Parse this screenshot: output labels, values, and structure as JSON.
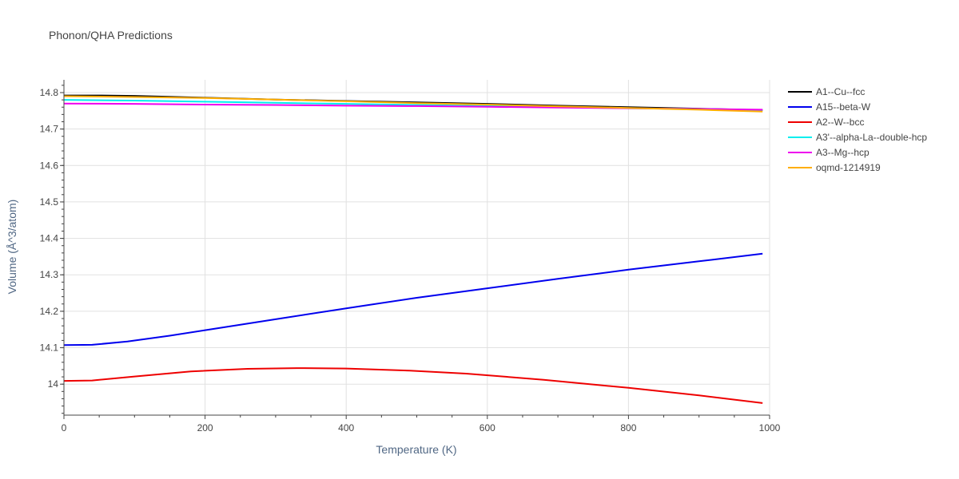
{
  "chart_data": {
    "type": "line",
    "title": "Phonon/QHA Predictions",
    "xlabel": "Temperature (K)",
    "ylabel": "Volume (Å^3/atom)",
    "xlim": [
      0,
      1000
    ],
    "ylim": [
      13.915,
      14.835
    ],
    "x_ticks": [
      0,
      200,
      400,
      600,
      800,
      1000
    ],
    "y_ticks": [
      14,
      14.1,
      14.2,
      14.3,
      14.4,
      14.5,
      14.6,
      14.7,
      14.8
    ],
    "x_tick_labels": [
      "0",
      "200",
      "400",
      "600",
      "800",
      "1000"
    ],
    "y_tick_labels": [
      "14",
      "14.1",
      "14.2",
      "14.3",
      "14.4",
      "14.5",
      "14.6",
      "14.7",
      "14.8"
    ],
    "grid": true,
    "legend_position": "right",
    "series": [
      {
        "name": "A1--Cu--fcc",
        "color": "#000000",
        "x": [
          0,
          50,
          100,
          200,
          300,
          400,
          500,
          600,
          700,
          800,
          990
        ],
        "y": [
          14.792,
          14.792,
          14.791,
          14.786,
          14.781,
          14.777,
          14.773,
          14.769,
          14.764,
          14.76,
          14.752
        ]
      },
      {
        "name": "A15--beta-W",
        "color": "#0000ee",
        "x": [
          0,
          40,
          90,
          150,
          200,
          300,
          400,
          500,
          600,
          700,
          800,
          900,
          990
        ],
        "y": [
          14.107,
          14.108,
          14.117,
          14.133,
          14.148,
          14.178,
          14.208,
          14.237,
          14.263,
          14.289,
          14.314,
          14.337,
          14.358
        ]
      },
      {
        "name": "A2--W--bcc",
        "color": "#ee0000",
        "x": [
          0,
          40,
          100,
          180,
          260,
          330,
          400,
          490,
          570,
          680,
          800,
          900,
          990
        ],
        "y": [
          14.009,
          14.01,
          14.021,
          14.035,
          14.042,
          14.044,
          14.043,
          14.037,
          14.029,
          14.012,
          13.99,
          13.969,
          13.948
        ]
      },
      {
        "name": "A3'--alpha-La--double-hcp",
        "color": "#00eeee",
        "x": [
          0,
          100,
          200,
          300,
          400,
          500,
          600,
          700,
          800,
          900,
          990
        ],
        "y": [
          14.78,
          14.778,
          14.775,
          14.772,
          14.769,
          14.766,
          14.763,
          14.76,
          14.757,
          14.755,
          14.752
        ]
      },
      {
        "name": "A3--Mg--hcp",
        "color": "#ee00ee",
        "x": [
          0,
          100,
          200,
          300,
          400,
          500,
          600,
          700,
          800,
          900,
          990
        ],
        "y": [
          14.77,
          14.769,
          14.767,
          14.766,
          14.764,
          14.763,
          14.761,
          14.759,
          14.757,
          14.755,
          14.753
        ]
      },
      {
        "name": "oqmd-1214919",
        "color": "#ffae00",
        "x": [
          0,
          100,
          200,
          300,
          400,
          500,
          600,
          700,
          800,
          900,
          990
        ],
        "y": [
          14.79,
          14.788,
          14.785,
          14.781,
          14.776,
          14.771,
          14.767,
          14.762,
          14.758,
          14.753,
          14.748
        ]
      }
    ]
  }
}
